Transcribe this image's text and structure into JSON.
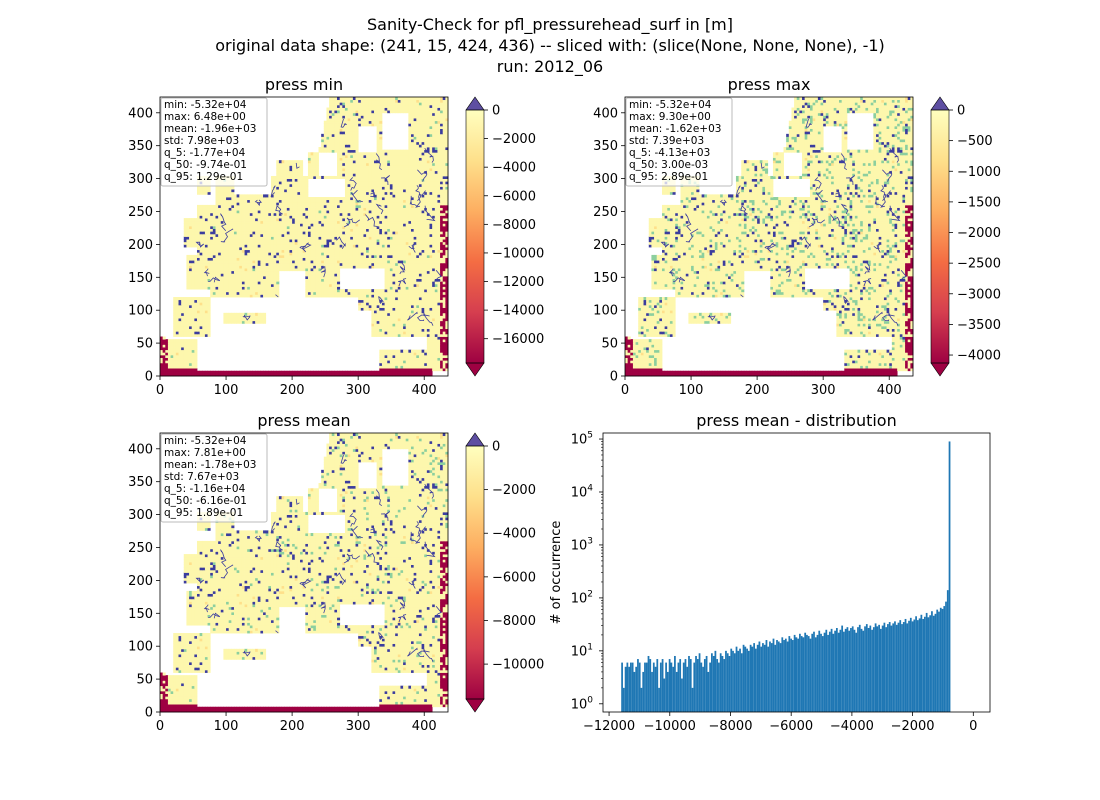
{
  "suptitle": [
    "Sanity-Check for pfl_pressurehead_surf in [m]",
    "original data shape: (241, 15, 424, 436) -- sliced with: (slice(None, None, None), -1)",
    "run: 2012_06"
  ],
  "colors": {
    "ocean": "#ffffff",
    "land": "#fdf7ad",
    "river": "#3b3c9e",
    "green": "#8ccf9e",
    "boundary": "#9e0142",
    "hist": "#1f77b4",
    "spectral": [
      "#9e0142",
      "#d53e4f",
      "#f46d43",
      "#fdae61",
      "#fee08b",
      "#ffffbf",
      "#e6f598",
      "#abdda4",
      "#66c2a5",
      "#3288bd",
      "#5e4fa2"
    ]
  },
  "chart_data": [
    {
      "type": "heatmap",
      "title": "press min",
      "xticks": [
        0,
        100,
        200,
        300,
        400
      ],
      "yticks": [
        0,
        50,
        100,
        150,
        200,
        250,
        300,
        350,
        400
      ],
      "xlim": [
        0,
        436
      ],
      "ylim": [
        0,
        424
      ],
      "colorbar": {
        "range": [
          -17700,
          0
        ],
        "ticks": [
          "0",
          "−2000",
          "−4000",
          "−6000",
          "−8000",
          "−10000",
          "−12000",
          "−14000",
          "−16000"
        ],
        "tick_values": [
          0,
          -2000,
          -4000,
          -6000,
          -8000,
          -10000,
          -12000,
          -14000,
          -16000
        ]
      },
      "stats": [
        "min: -5.32e+04",
        "max: 6.48e+00",
        "mean: -1.96e+03",
        "std: 7.98e+03",
        "q_5: -1.77e+04",
        "q_50: -9.74e-01",
        "q_95: 1.29e-01"
      ],
      "green_level": 0.04
    },
    {
      "type": "heatmap",
      "title": "press max",
      "xticks": [
        0,
        100,
        200,
        300,
        400
      ],
      "yticks": [
        0,
        50,
        100,
        150,
        200,
        250,
        300,
        350,
        400
      ],
      "xlim": [
        0,
        436
      ],
      "ylim": [
        0,
        424
      ],
      "colorbar": {
        "range": [
          -4130,
          0
        ],
        "ticks": [
          "0",
          "−500",
          "−1000",
          "−1500",
          "−2000",
          "−2500",
          "−3000",
          "−3500",
          "−4000"
        ],
        "tick_values": [
          0,
          -500,
          -1000,
          -1500,
          -2000,
          -2500,
          -3000,
          -3500,
          -4000
        ]
      },
      "stats": [
        "min: -5.32e+04",
        "max: 9.30e+00",
        "mean: -1.62e+03",
        "std: 7.39e+03",
        "q_5: -4.13e+03",
        "q_50: 3.00e-03",
        "q_95: 2.89e-01"
      ],
      "green_level": 0.3
    },
    {
      "type": "heatmap",
      "title": "press mean",
      "xticks": [
        0,
        100,
        200,
        300,
        400
      ],
      "yticks": [
        0,
        50,
        100,
        150,
        200,
        250,
        300,
        350,
        400
      ],
      "xlim": [
        0,
        436
      ],
      "ylim": [
        0,
        424
      ],
      "colorbar": {
        "range": [
          -11600,
          0
        ],
        "ticks": [
          "0",
          "−2000",
          "−4000",
          "−6000",
          "−8000",
          "−10000"
        ],
        "tick_values": [
          0,
          -2000,
          -4000,
          -6000,
          -8000,
          -10000
        ]
      },
      "stats": [
        "min: -5.32e+04",
        "max: 7.81e+00",
        "mean: -1.78e+03",
        "std: 7.67e+03",
        "q_5: -1.16e+04",
        "q_50: -6.16e-01",
        "q_95: 1.89e-01"
      ],
      "green_level": 0.12
    },
    {
      "type": "bar",
      "title": "press mean - distribution",
      "ylabel": "# of occurrence",
      "xlabel": "",
      "yscale": "log",
      "xlim": [
        -12200,
        550
      ],
      "ylim": [
        0.7,
        130000
      ],
      "xticks": [
        -12000,
        -10000,
        -8000,
        -6000,
        -4000,
        -2000,
        0
      ],
      "xtick_labels": [
        "−12000",
        "−10000",
        "−8000",
        "−6000",
        "−4000",
        "−2000",
        "0"
      ],
      "yticks": [
        1,
        10,
        100,
        1000,
        10000,
        100000
      ],
      "bin_start": -11600,
      "bin_width": 58,
      "counts": [
        6,
        2,
        5,
        6,
        5,
        6,
        6,
        4,
        5,
        7,
        6,
        2,
        4,
        6,
        6,
        8,
        7,
        4,
        6,
        5,
        7,
        2,
        6,
        7,
        3,
        6,
        4,
        7,
        6,
        5,
        8,
        4,
        6,
        7,
        3,
        6,
        7,
        5,
        8,
        7,
        2,
        6,
        8,
        7,
        9,
        6,
        5,
        7,
        8,
        4,
        6,
        9,
        8,
        10,
        7,
        6,
        9,
        8,
        7,
        10,
        9,
        8,
        11,
        10,
        9,
        12,
        10,
        11,
        9,
        13,
        12,
        11,
        10,
        13,
        12,
        14,
        11,
        13,
        15,
        12,
        14,
        13,
        16,
        12,
        15,
        14,
        17,
        13,
        16,
        15,
        14,
        18,
        16,
        17,
        15,
        19,
        17,
        16,
        20,
        18,
        17,
        21,
        19,
        18,
        22,
        20,
        19,
        17,
        21,
        23,
        18,
        20,
        24,
        21,
        19,
        22,
        25,
        20,
        23,
        26,
        21,
        24,
        27,
        22,
        25,
        30,
        23,
        26,
        28,
        24,
        27,
        29,
        25,
        22,
        28,
        31,
        26,
        24,
        29,
        32,
        27,
        30,
        25,
        28,
        33,
        29,
        31,
        26,
        30,
        34,
        28,
        32,
        35,
        30,
        33,
        36,
        31,
        34,
        38,
        32,
        35,
        40,
        33,
        37,
        42,
        36,
        39,
        45,
        38,
        41,
        48,
        40,
        44,
        52,
        43,
        47,
        56,
        46,
        50,
        60,
        55,
        65,
        62,
        70,
        85,
        140,
        90000
      ]
    }
  ]
}
